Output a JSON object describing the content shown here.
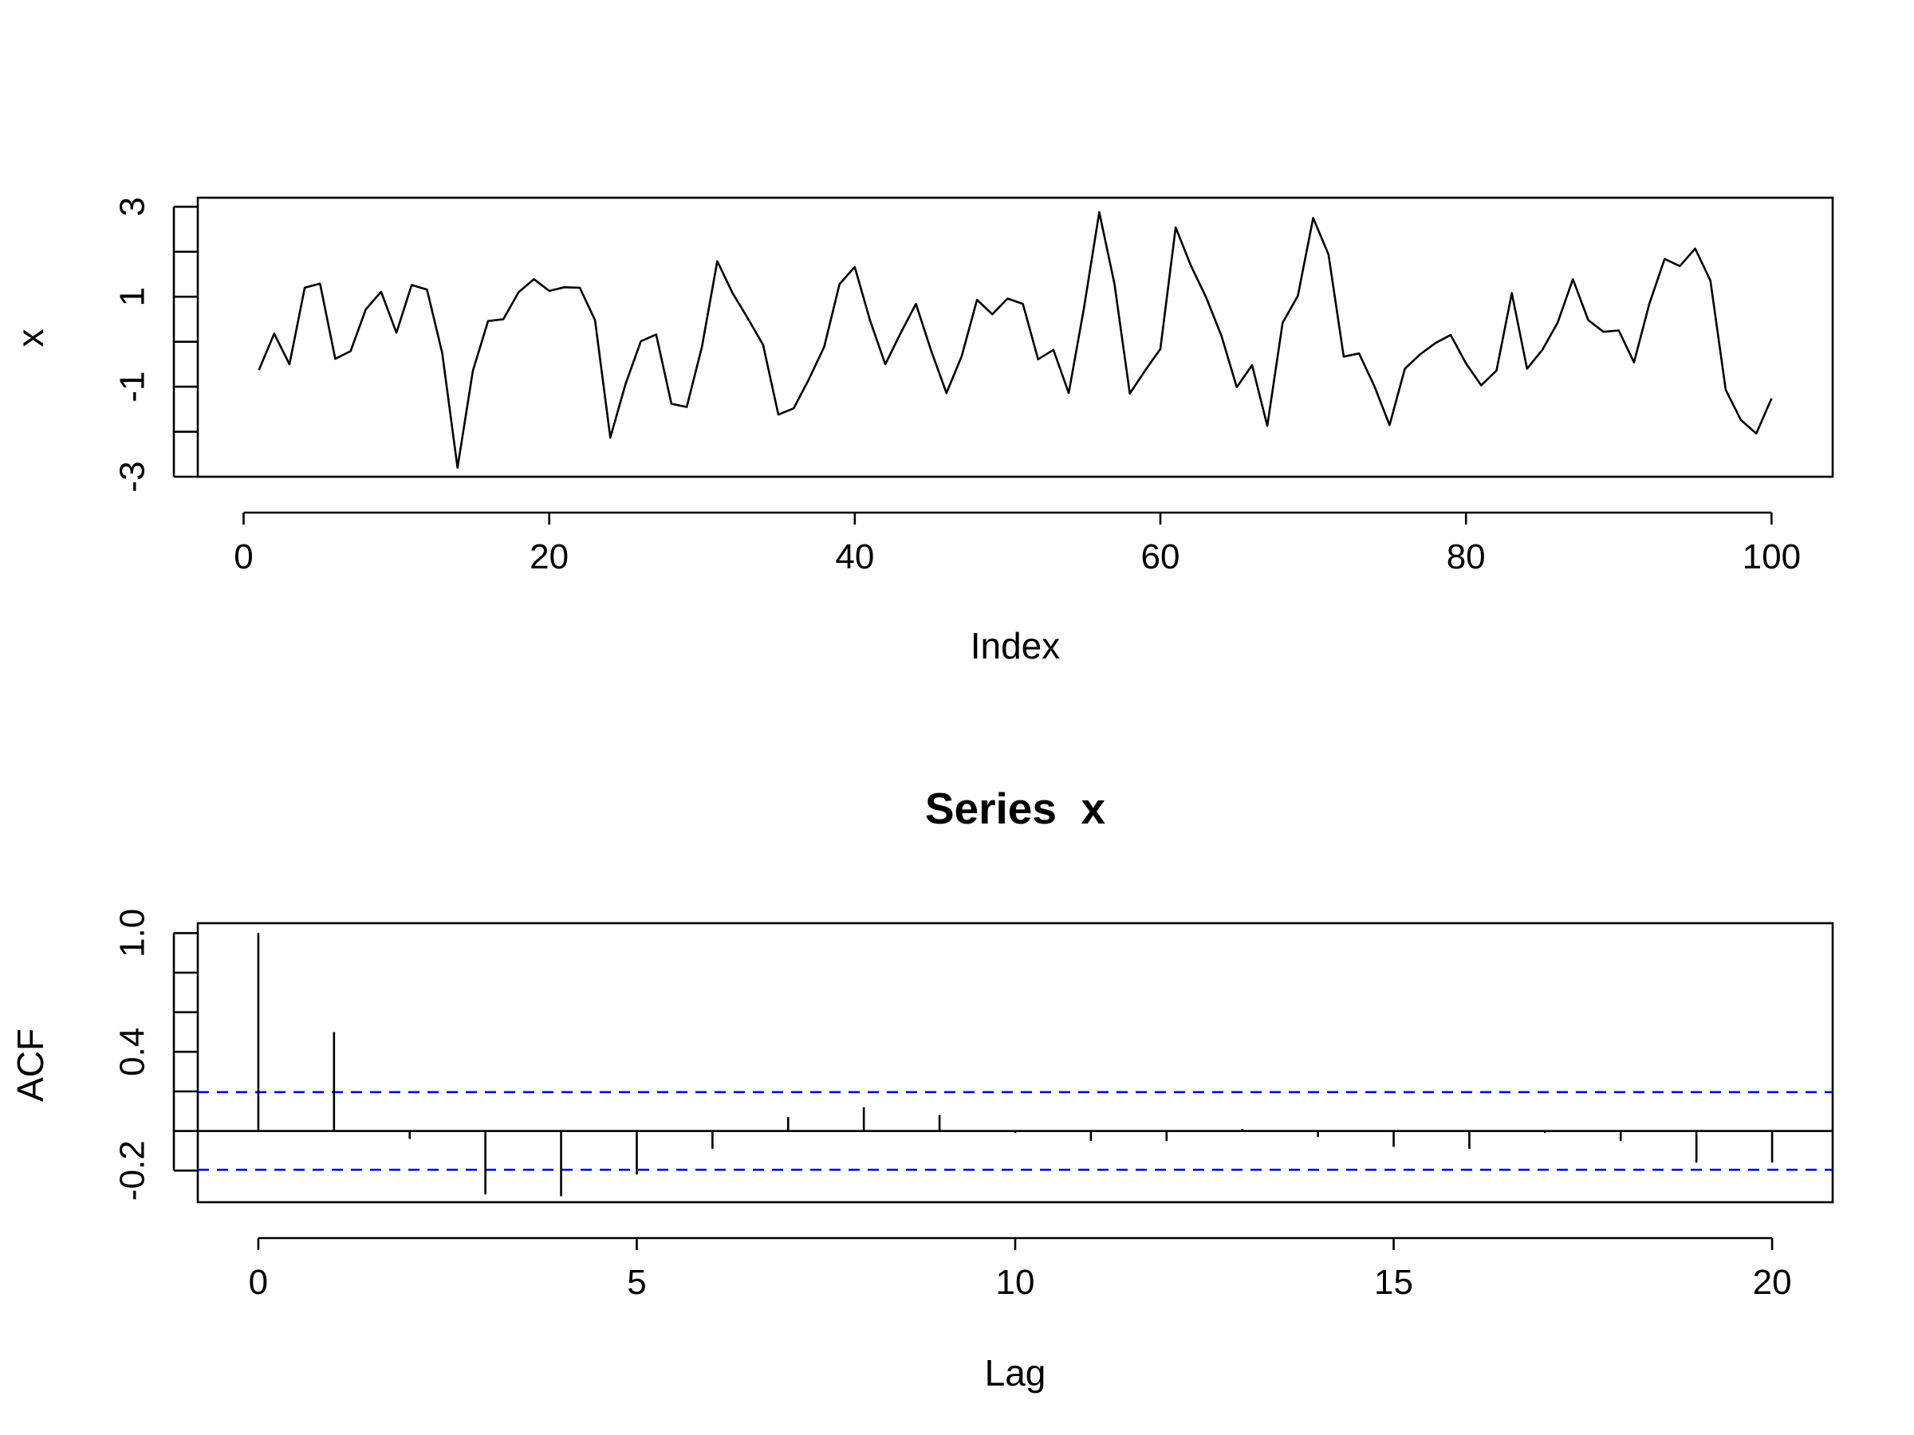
{
  "chart_data": [
    {
      "type": "line",
      "title": "",
      "xlabel": "Index",
      "ylabel": "x",
      "xlim": [
        -3,
        104
      ],
      "ylim": [
        -3,
        3.2
      ],
      "x_ticks": [
        0,
        20,
        40,
        60,
        80,
        100
      ],
      "x_tick_labels": [
        "0",
        "20",
        "40",
        "60",
        "80",
        "100"
      ],
      "y_ticks": [
        -3,
        -2,
        -1,
        0,
        1,
        2,
        3
      ],
      "y_tick_labels": [
        "-3",
        "",
        "-1",
        "",
        "1",
        "",
        "3"
      ],
      "series": [
        {
          "values": [
            -0.63,
            0.18,
            -0.5,
            1.2,
            1.29,
            -0.38,
            -0.21,
            0.72,
            1.11,
            0.2,
            1.26,
            1.16,
            -0.25,
            -2.8,
            -0.65,
            0.46,
            0.5,
            1.1,
            1.39,
            1.13,
            1.21,
            1.2,
            0.48,
            -2.13,
            -0.94,
            0.01,
            0.16,
            -1.38,
            -1.45,
            -0.11,
            1.79,
            1.08,
            0.52,
            -0.07,
            -1.62,
            -1.48,
            -0.83,
            -0.11,
            1.28,
            1.66,
            0.47,
            -0.5,
            0.19,
            0.84,
            -0.2,
            -1.14,
            -0.32,
            0.93,
            0.61,
            0.96,
            0.84,
            -0.39,
            -0.18,
            -1.14,
            0.75,
            2.88,
            1.28,
            -1.15,
            -0.64,
            -0.16,
            2.54,
            1.69,
            0.98,
            0.13,
            -1.01,
            -0.52,
            -1.87,
            0.42,
            1.02,
            2.75,
            1.94,
            -0.33,
            -0.26,
            -0.98,
            -1.85,
            -0.6,
            -0.28,
            -0.03,
            0.15,
            -0.48,
            -0.97,
            -0.64,
            1.08,
            -0.6,
            -0.18,
            0.42,
            1.39,
            0.48,
            0.22,
            0.25,
            -0.46,
            0.84,
            1.84,
            1.68,
            2.07,
            1.36,
            -1.07,
            -1.74,
            -2.04,
            -1.26
          ]
        }
      ]
    },
    {
      "type": "bar",
      "title": "Series  x",
      "xlabel": "Lag",
      "ylabel": "ACF",
      "xlim": [
        -0.8,
        20.8
      ],
      "ylim": [
        -0.36,
        1.05
      ],
      "x_ticks": [
        0,
        5,
        10,
        15,
        20
      ],
      "x_tick_labels": [
        "0",
        "5",
        "10",
        "15",
        "20"
      ],
      "y_ticks": [
        -0.2,
        0,
        0.2,
        0.4,
        0.6,
        0.8,
        1.0
      ],
      "y_tick_labels": [
        "-0.2",
        "",
        "",
        "0.4",
        "",
        "",
        "1.0"
      ],
      "lags": [
        0,
        1,
        2,
        3,
        4,
        5,
        6,
        7,
        8,
        9,
        10,
        11,
        12,
        13,
        14,
        15,
        16,
        17,
        18,
        19,
        20
      ],
      "values": [
        1.0,
        0.5,
        -0.04,
        -0.32,
        -0.33,
        -0.22,
        -0.09,
        0.07,
        0.12,
        0.08,
        -0.01,
        -0.05,
        -0.05,
        0.01,
        -0.03,
        -0.08,
        -0.09,
        -0.01,
        -0.05,
        -0.16,
        -0.16
      ],
      "confidence_bound": 0.196,
      "confidence_color": "#0000ee"
    }
  ]
}
